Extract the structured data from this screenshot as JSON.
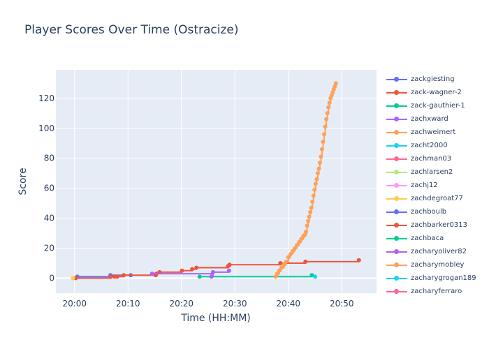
{
  "chart_data": {
    "type": "line",
    "title": "Player Scores Over Time (Ostracize)",
    "xlabel": "Time (HH:MM)",
    "ylabel": "Score",
    "x_unit": "minutes after 20:00",
    "xlim": [
      -3.5,
      56.5
    ],
    "ylim": [
      -10,
      139
    ],
    "x_ticks": [
      0,
      10,
      20,
      30,
      40,
      50
    ],
    "x_tick_labels": [
      "20:00",
      "20:10",
      "20:20",
      "20:30",
      "20:40",
      "20:50"
    ],
    "y_ticks": [
      0,
      20,
      40,
      60,
      80,
      100,
      120
    ],
    "y_tick_labels": [
      "0",
      "20",
      "40",
      "60",
      "80",
      "100",
      "120"
    ],
    "grid": true,
    "legend_position": "right",
    "series": [
      {
        "name": "zackgiesting",
        "color": "#636efa",
        "x": [
          0.5,
          6.7,
          10.5
        ],
        "y": [
          1,
          2,
          2
        ]
      },
      {
        "name": "zack-wagner-2",
        "color": "#EF553B",
        "x": [
          0.2,
          6.8,
          7.5,
          8.0,
          9.2,
          15.2,
          15.3,
          15.9,
          20.1,
          22.0,
          22.8,
          28.7,
          29.0,
          38.5,
          43.2,
          53.2
        ],
        "y": [
          0,
          1,
          1,
          1,
          2,
          2,
          3,
          4,
          5,
          6,
          7,
          8,
          9,
          10,
          11,
          12
        ]
      },
      {
        "name": "zack-gauthier-1",
        "color": "#00cc96",
        "x": [
          23.4,
          44.4
        ],
        "y": [
          1,
          2
        ]
      },
      {
        "name": "zachxward",
        "color": "#ab63fa",
        "x": [
          14.5,
          25.6,
          25.9,
          28.9
        ],
        "y": [
          3,
          1,
          4,
          5
        ]
      },
      {
        "name": "zachweimert",
        "color": "#FFA15A",
        "x": [
          37.6,
          37.9,
          38.3,
          38.7,
          39.2,
          39.6,
          40.0,
          40.4,
          40.8,
          41.2,
          41.6,
          42.0,
          42.4,
          42.8,
          43.1,
          43.3,
          43.5,
          43.7,
          43.9,
          44.1,
          44.3,
          44.5,
          44.7,
          44.9,
          45.1,
          45.3,
          45.5,
          45.7,
          45.9,
          46.1,
          46.3,
          46.5,
          46.7,
          46.9,
          47.1,
          47.3,
          47.5,
          47.7,
          47.9,
          48.1,
          48.3,
          48.5,
          48.7,
          48.9
        ],
        "y": [
          1,
          3,
          5,
          7,
          9,
          11,
          14,
          16,
          18,
          20,
          22,
          24,
          26,
          28,
          29,
          31,
          35,
          38,
          41,
          44,
          47,
          51,
          55,
          59,
          63,
          66,
          70,
          73,
          77,
          81,
          86,
          91,
          96,
          101,
          106,
          110,
          114,
          117,
          120,
          122,
          124,
          126,
          128,
          130
        ]
      },
      {
        "name": "zacht2000",
        "color": "#19d3f3",
        "x": [
          45.0
        ],
        "y": [
          1
        ]
      },
      {
        "name": "zachman03",
        "color": "#FF6692",
        "x": [],
        "y": []
      },
      {
        "name": "zachlarsen2",
        "color": "#B6E880",
        "x": [],
        "y": []
      },
      {
        "name": "zachj12",
        "color": "#FF97FF",
        "x": [],
        "y": []
      },
      {
        "name": "zachdegroat77",
        "color": "#FECB52",
        "x": [
          -0.3
        ],
        "y": [
          0
        ]
      },
      {
        "name": "zachboulb",
        "color": "#636efa",
        "x": [],
        "y": []
      },
      {
        "name": "zachbarker0313",
        "color": "#EF553B",
        "x": [],
        "y": []
      },
      {
        "name": "zachbaca",
        "color": "#00cc96",
        "x": [],
        "y": []
      },
      {
        "name": "zacharyoliver82",
        "color": "#ab63fa",
        "x": [],
        "y": []
      },
      {
        "name": "zacharymobley",
        "color": "#FFA15A",
        "x": [],
        "y": []
      },
      {
        "name": "zacharygrogan189",
        "color": "#19d3f3",
        "x": [],
        "y": []
      },
      {
        "name": "zacharyferraro",
        "color": "#FF6692",
        "x": [],
        "y": []
      }
    ]
  }
}
